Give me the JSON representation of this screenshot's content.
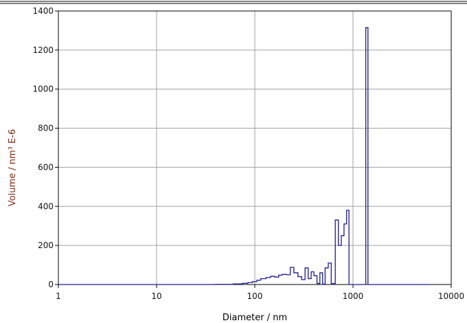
{
  "chart_data": {
    "type": "histogram",
    "title": "",
    "xlabel": "Diameter / nm",
    "ylabel": "Volume / nm³ E-6",
    "x_scale": "log",
    "xlim": [
      1,
      10000
    ],
    "ylim": [
      0,
      1400
    ],
    "xticks": [
      1,
      10,
      100,
      1000,
      10000
    ],
    "xtick_labels": [
      "1",
      "10",
      "100",
      "1000",
      "10000"
    ],
    "yticks": [
      0,
      200,
      400,
      600,
      800,
      1000,
      1200,
      1400
    ],
    "ytick_labels": [
      "0",
      "200",
      "400",
      "600",
      "800",
      "1000",
      "1200",
      "1400"
    ],
    "grid": true,
    "colors": {
      "series": "#1a1a8c",
      "grid": "#a0a0a0",
      "axis": "#000000",
      "ylabel": "#7a2a10"
    },
    "series": [
      {
        "bins": [
          {
            "x0": 1,
            "x1": 40,
            "y": 0
          },
          {
            "x0": 40,
            "x1": 60,
            "y": 1
          },
          {
            "x0": 60,
            "x1": 75,
            "y": 3
          },
          {
            "x0": 75,
            "x1": 85,
            "y": 6
          },
          {
            "x0": 85,
            "x1": 95,
            "y": 10
          },
          {
            "x0": 95,
            "x1": 105,
            "y": 15
          },
          {
            "x0": 105,
            "x1": 115,
            "y": 22
          },
          {
            "x0": 115,
            "x1": 130,
            "y": 30
          },
          {
            "x0": 130,
            "x1": 145,
            "y": 36
          },
          {
            "x0": 145,
            "x1": 160,
            "y": 42
          },
          {
            "x0": 160,
            "x1": 175,
            "y": 38
          },
          {
            "x0": 175,
            "x1": 190,
            "y": 48
          },
          {
            "x0": 190,
            "x1": 210,
            "y": 52
          },
          {
            "x0": 210,
            "x1": 230,
            "y": 50
          },
          {
            "x0": 230,
            "x1": 250,
            "y": 88
          },
          {
            "x0": 250,
            "x1": 275,
            "y": 60
          },
          {
            "x0": 275,
            "x1": 300,
            "y": 40
          },
          {
            "x0": 300,
            "x1": 325,
            "y": 25
          },
          {
            "x0": 325,
            "x1": 350,
            "y": 85
          },
          {
            "x0": 350,
            "x1": 375,
            "y": 30
          },
          {
            "x0": 375,
            "x1": 400,
            "y": 65
          },
          {
            "x0": 400,
            "x1": 430,
            "y": 45
          },
          {
            "x0": 430,
            "x1": 460,
            "y": 5
          },
          {
            "x0": 460,
            "x1": 490,
            "y": 60
          },
          {
            "x0": 490,
            "x1": 520,
            "y": 2
          },
          {
            "x0": 520,
            "x1": 560,
            "y": 85
          },
          {
            "x0": 560,
            "x1": 600,
            "y": 110
          },
          {
            "x0": 600,
            "x1": 660,
            "y": 5
          },
          {
            "x0": 660,
            "x1": 710,
            "y": 330
          },
          {
            "x0": 710,
            "x1": 760,
            "y": 200
          },
          {
            "x0": 760,
            "x1": 810,
            "y": 250
          },
          {
            "x0": 810,
            "x1": 860,
            "y": 310
          },
          {
            "x0": 860,
            "x1": 910,
            "y": 380
          },
          {
            "x0": 910,
            "x1": 1350,
            "y": 0
          },
          {
            "x0": 1350,
            "x1": 1420,
            "y": 1315
          },
          {
            "x0": 1420,
            "x1": 6000,
            "y": 0
          }
        ]
      }
    ]
  }
}
